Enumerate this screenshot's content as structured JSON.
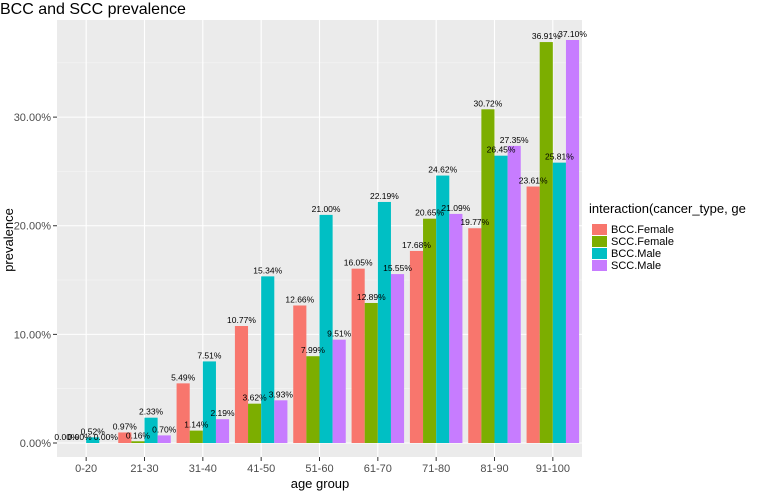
{
  "chart_data": {
    "type": "bar",
    "title": "BCC and SCC prevalence",
    "xlabel": "age group",
    "ylabel": "prevalence",
    "ylim": [
      0,
      38.5
    ],
    "yticks": [
      0,
      10,
      20,
      30
    ],
    "ytick_labels": [
      "0.00%",
      "10.00%",
      "20.00%",
      "30.00%"
    ],
    "grid": true,
    "legend_position": "right",
    "legend_title": "interaction(cancer_type, ge",
    "categories": [
      "0-20",
      "21-30",
      "31-40",
      "41-50",
      "51-60",
      "61-70",
      "71-80",
      "81-90",
      "91-100"
    ],
    "series": [
      {
        "name": "BCC.Female",
        "color": "#F8766D",
        "values": [
          0.0,
          0.97,
          5.49,
          10.77,
          12.66,
          16.05,
          17.68,
          19.77,
          23.61
        ],
        "labels": [
          "0.00%",
          "0.97%",
          "5.49%",
          "10.77%",
          "12.66%",
          "16.05%",
          "17.68%",
          "19.77%",
          "23.61%"
        ]
      },
      {
        "name": "SCC.Female",
        "color": "#7CAE00",
        "values": [
          0.0,
          0.16,
          1.14,
          3.62,
          7.99,
          12.89,
          20.65,
          30.72,
          36.91
        ],
        "labels": [
          "0.00%",
          "0.16%",
          "1.14%",
          "3.62%",
          "7.99%",
          "12.89%",
          "20.65%",
          "30.72%",
          "36.91%"
        ]
      },
      {
        "name": "BCC.Male",
        "color": "#00BFC4",
        "values": [
          0.52,
          2.33,
          7.51,
          15.34,
          21.0,
          22.19,
          24.62,
          26.45,
          25.81
        ],
        "labels": [
          "0.52%",
          "2.33%",
          "7.51%",
          "15.34%",
          "21.00%",
          "22.19%",
          "24.62%",
          "26.45%",
          "25.81%"
        ]
      },
      {
        "name": "SCC.Male",
        "color": "#C77CFF",
        "values": [
          0.0,
          0.7,
          2.19,
          3.93,
          9.51,
          15.55,
          21.09,
          27.35,
          37.1
        ],
        "labels": [
          "0.00%",
          "0.70%",
          "2.19%",
          "3.93%",
          "9.51%",
          "15.55%",
          "21.09%",
          "27.35%",
          "37.10%"
        ]
      }
    ]
  }
}
